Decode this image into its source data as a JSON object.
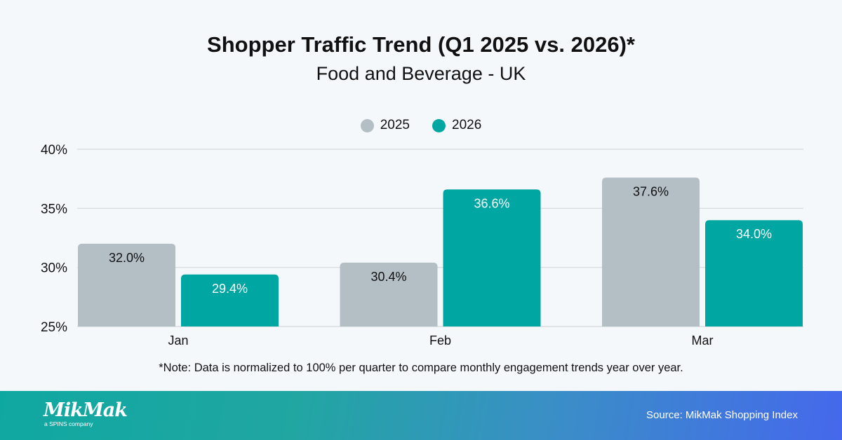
{
  "chart_data": {
    "type": "bar",
    "title": "Shopper Traffic Trend (Q1 2025 vs. 2026)*",
    "subtitle": "Food and Beverage - UK",
    "categories": [
      "Jan",
      "Feb",
      "Mar"
    ],
    "series": [
      {
        "name": "2025",
        "values": [
          32.0,
          30.4,
          37.6
        ],
        "labels": [
          "32.0%",
          "30.4%",
          "37.6%"
        ],
        "color": "#b3bec5"
      },
      {
        "name": "2026",
        "values": [
          29.4,
          36.6,
          34.0
        ],
        "labels": [
          "29.4%",
          "36.6%",
          "34.0%"
        ],
        "color": "#00a6a2"
      }
    ],
    "ylim": [
      25,
      40
    ],
    "yticks": [
      25,
      30,
      35,
      40
    ],
    "ytick_labels": [
      "25%",
      "30%",
      "35%",
      "40%"
    ],
    "grid": true,
    "legend": "top-center",
    "xlabel": "",
    "ylabel": ""
  },
  "note": "*Note: Data is normalized to 100% per quarter to compare monthly engagement trends year over year.",
  "footer": {
    "logo_text": "MikMak",
    "logo_subtext": "a SPINS company",
    "source": "Source: MikMak Shopping Index"
  }
}
